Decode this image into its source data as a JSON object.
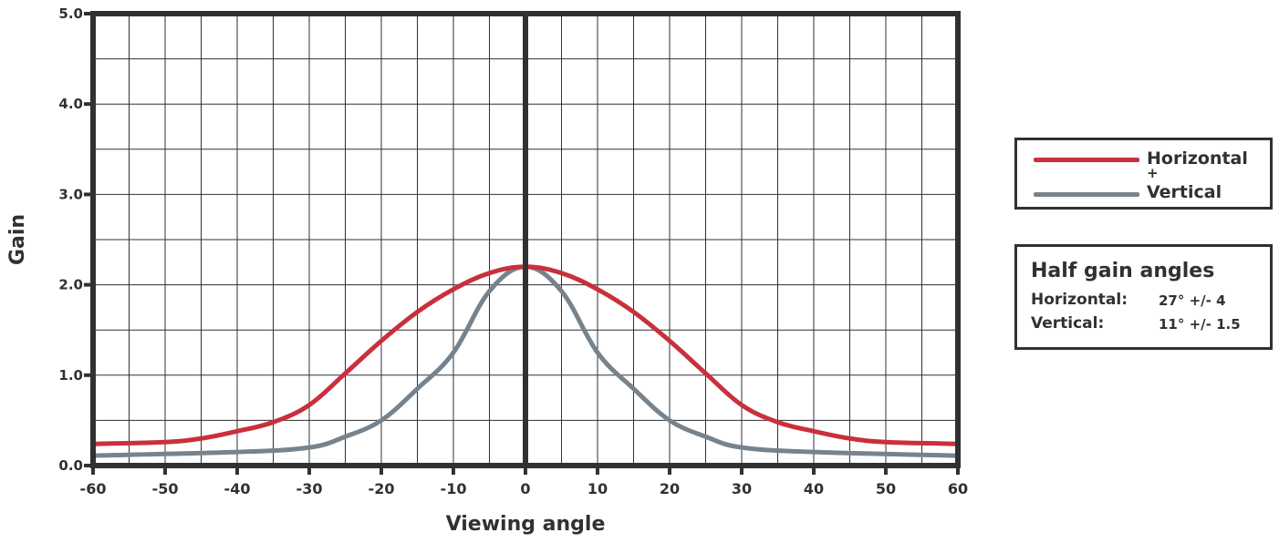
{
  "chart_data": {
    "type": "line",
    "title": "",
    "xlabel": "Viewing angle",
    "ylabel": "Gain",
    "xlim": [
      -60,
      60
    ],
    "ylim": [
      0,
      5
    ],
    "xticks": [
      -60,
      -50,
      -40,
      -30,
      -20,
      -10,
      0,
      10,
      20,
      30,
      40,
      50,
      60
    ],
    "xtick_labels": [
      "-60",
      "-50",
      "-40",
      "-30",
      "-20",
      "-10",
      "0",
      "10",
      "20",
      "30",
      "40",
      "50",
      "60"
    ],
    "yticks": [
      0,
      1,
      2,
      3,
      4,
      5
    ],
    "ytick_labels": [
      "0.0",
      "1.0",
      "2.0",
      "3.0",
      "4.0",
      "5.0"
    ],
    "grid": true,
    "grid_x_step": 5,
    "grid_y_step": 0.5,
    "legend_position": "right",
    "series": [
      {
        "name": "Horizontal",
        "color": "#c9303c",
        "x": [
          -60,
          -50,
          -45,
          -40,
          -35,
          -30,
          -25,
          -20,
          -15,
          -10,
          -5,
          0,
          5,
          10,
          15,
          20,
          25,
          30,
          35,
          40,
          45,
          50,
          60
        ],
        "y": [
          0.24,
          0.26,
          0.3,
          0.38,
          0.48,
          0.67,
          1.02,
          1.38,
          1.7,
          1.95,
          2.13,
          2.2,
          2.13,
          1.95,
          1.7,
          1.38,
          1.02,
          0.67,
          0.48,
          0.38,
          0.3,
          0.26,
          0.24
        ]
      },
      {
        "name": "Vertical",
        "color": "#77838c",
        "x": [
          -60,
          -40,
          -30,
          -25,
          -20,
          -15,
          -10,
          -5,
          0,
          5,
          10,
          15,
          20,
          25,
          30,
          40,
          60
        ],
        "y": [
          0.11,
          0.15,
          0.2,
          0.32,
          0.5,
          0.85,
          1.25,
          1.93,
          2.2,
          1.93,
          1.25,
          0.85,
          0.5,
          0.32,
          0.2,
          0.15,
          0.11
        ]
      }
    ]
  },
  "legend": {
    "horizontal_label": "Horizontal",
    "plus_label": "+",
    "vertical_label": "Vertical"
  },
  "half_gain": {
    "title": "Half gain angles",
    "rows": [
      {
        "label": "Horizontal:",
        "value": "27° +/- 4"
      },
      {
        "label": "Vertical:",
        "value": "11° +/- 1.5"
      }
    ]
  }
}
